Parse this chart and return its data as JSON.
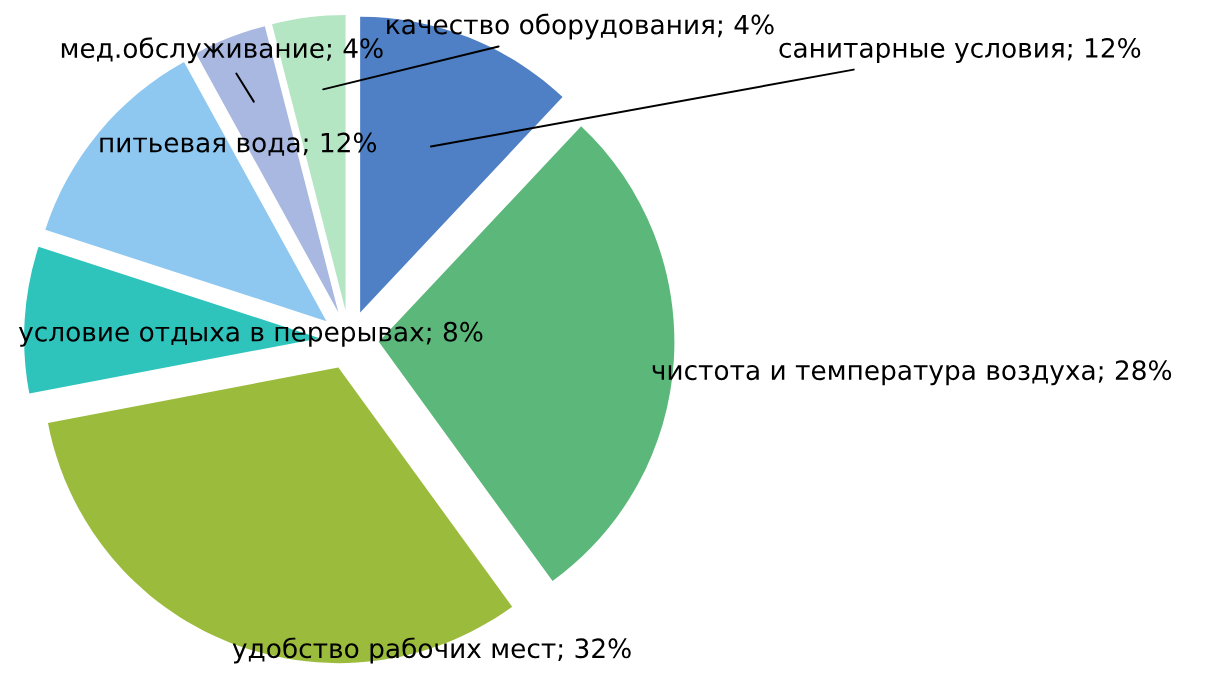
{
  "chart_data": {
    "type": "pie",
    "categories": [
      "санитарные условия",
      "чистота и температура воздуха",
      "удобство рабочих мест",
      "условие отдыха в перерывах",
      "питьевая вода",
      "мед.обслуживание",
      "качество оборудования"
    ],
    "values": [
      12,
      28,
      32,
      8,
      12,
      4,
      4
    ],
    "value_labels": [
      "12%",
      "28%",
      "32%",
      "8%",
      "12%",
      "4%",
      "4%"
    ],
    "colors": [
      "#4f7fc4",
      "#5cb87a",
      "#9bbb3c",
      "#2ec4bc",
      "#8ec8f0",
      "#a9b8e0",
      "#b5e6c4"
    ],
    "legend": false
  }
}
